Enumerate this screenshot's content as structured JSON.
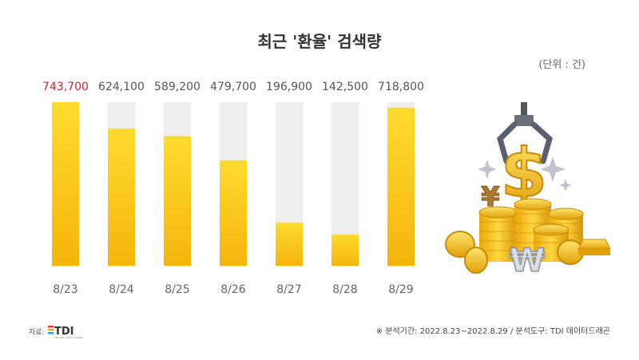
{
  "title": "최근 '환율' 검색량",
  "unit_label": "(단위 : 건)",
  "chart_data": {
    "type": "bar",
    "title": "최근 '환율' 검색량",
    "categories": [
      "8/23",
      "8/24",
      "8/25",
      "8/26",
      "8/27",
      "8/28",
      "8/29"
    ],
    "values": [
      743700,
      624100,
      589200,
      479700,
      196900,
      142500,
      718800
    ],
    "value_labels": [
      "743,700",
      "624,100",
      "589,200",
      "479,700",
      "196,900",
      "142,500",
      "718,800"
    ],
    "ylim": [
      0,
      743700
    ],
    "grid": false,
    "highlight_index": 0,
    "colors": {
      "bar_top": "#FFDB2E",
      "bar_bottom": "#F5B50B",
      "track": "#EEEEEE",
      "highlight_label": "#D7202A",
      "label": "#555555",
      "tick": "#666666"
    }
  },
  "source": {
    "label": "자료:",
    "logo": "TDI",
    "logo_subtext": "TDI DATA INTELLIGENCE"
  },
  "note": "※ 분석기간: 2022.8.23~2022.8.29  / 분석도구: TDI 데이터드래곤"
}
